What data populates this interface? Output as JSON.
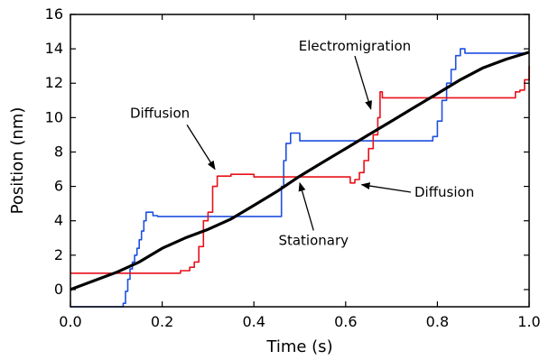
{
  "chart_data": {
    "type": "line",
    "xlabel": "Time (s)",
    "ylabel": "Position (nm)",
    "xlim": [
      0.0,
      1.0
    ],
    "ylim": [
      -1,
      16
    ],
    "xticks": [
      "0.0",
      "0.2",
      "0.4",
      "0.6",
      "0.8",
      "1.0"
    ],
    "yticks": [
      "0",
      "2",
      "4",
      "6",
      "8",
      "10",
      "12",
      "14",
      "16"
    ],
    "grid": false,
    "legend": "none",
    "series": [
      {
        "color": "#1f4fe0",
        "style": "steps",
        "x": [
          0.0,
          0.11,
          0.115,
          0.12,
          0.125,
          0.13,
          0.135,
          0.14,
          0.145,
          0.15,
          0.155,
          0.16,
          0.165,
          0.18,
          0.19,
          0.3,
          0.45,
          0.46,
          0.465,
          0.47,
          0.48,
          0.5,
          0.66,
          0.78,
          0.79,
          0.8,
          0.81,
          0.82,
          0.83,
          0.84,
          0.85,
          0.86,
          0.9,
          1.0
        ],
        "y": [
          -1.0,
          -1.0,
          -0.8,
          -0.1,
          0.6,
          1.2,
          1.6,
          2.0,
          2.4,
          2.9,
          3.4,
          4.0,
          4.5,
          4.3,
          4.25,
          4.25,
          4.25,
          6.0,
          7.5,
          8.5,
          9.1,
          8.65,
          8.65,
          8.65,
          8.9,
          9.8,
          11.0,
          12.0,
          12.8,
          13.6,
          14.0,
          13.75,
          13.75,
          13.75
        ]
      },
      {
        "color": "#e8101a",
        "style": "steps",
        "x": [
          0.0,
          0.1,
          0.23,
          0.24,
          0.26,
          0.27,
          0.28,
          0.29,
          0.3,
          0.31,
          0.32,
          0.35,
          0.4,
          0.6,
          0.61,
          0.62,
          0.63,
          0.64,
          0.65,
          0.66,
          0.67,
          0.675,
          0.68,
          0.7,
          0.9,
          0.95,
          0.97,
          0.98,
          0.99,
          1.0
        ],
        "y": [
          0.95,
          0.95,
          0.95,
          1.1,
          1.3,
          1.6,
          2.5,
          4.0,
          4.5,
          6.0,
          6.6,
          6.7,
          6.55,
          6.55,
          6.2,
          6.4,
          6.8,
          7.5,
          8.2,
          9.0,
          10.0,
          11.5,
          11.15,
          11.15,
          11.15,
          11.15,
          11.5,
          11.6,
          12.2,
          13.0
        ]
      },
      {
        "color": "#000000",
        "style": "line",
        "x": [
          0.0,
          0.05,
          0.1,
          0.15,
          0.2,
          0.25,
          0.3,
          0.35,
          0.4,
          0.45,
          0.5,
          0.55,
          0.6,
          0.65,
          0.7,
          0.75,
          0.8,
          0.85,
          0.9,
          0.95,
          1.0
        ],
        "y": [
          0.0,
          0.5,
          1.0,
          1.6,
          2.4,
          3.0,
          3.5,
          4.1,
          4.9,
          5.7,
          6.6,
          7.4,
          8.2,
          9.0,
          9.8,
          10.6,
          11.4,
          12.2,
          12.9,
          13.4,
          13.8
        ]
      }
    ],
    "annotations": [
      {
        "text": "Electromigration",
        "text_x": 0.62,
        "text_y": 13.9,
        "arrow_to_x": 0.655,
        "arrow_to_y": 10.5
      },
      {
        "text": "Diffusion",
        "text_x": 0.195,
        "text_y": 10.0,
        "arrow_to_x": 0.315,
        "arrow_to_y": 7.0
      },
      {
        "text": "Diffusion",
        "text_x": 0.75,
        "text_y": 5.4,
        "arrow_to_x": 0.635,
        "arrow_to_y": 6.1
      },
      {
        "text": "Stationary",
        "text_x": 0.53,
        "text_y": 2.6,
        "arrow_to_x": 0.5,
        "arrow_to_y": 6.2
      }
    ]
  }
}
